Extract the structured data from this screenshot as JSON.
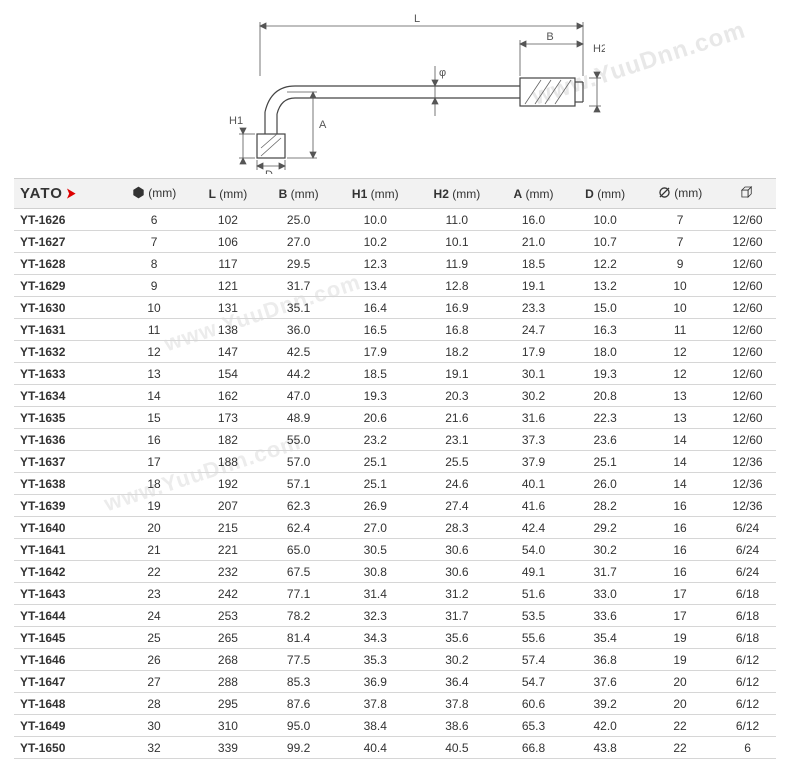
{
  "brand": "YATO",
  "watermark_text": "www.YuuDnn.com",
  "diagram": {
    "labels": {
      "L": "L",
      "B": "B",
      "H2": "H2",
      "H1": "H1",
      "A": "A",
      "D": "D",
      "phi": "φ"
    },
    "stroke": "#444444",
    "dim_stroke": "#555555",
    "background": "#ffffff",
    "hatch": "#666666"
  },
  "colors": {
    "header_bg": "#f2f2f2",
    "border": "#d6d6d6",
    "text": "#333333",
    "brand_arrow": "#d00000"
  },
  "columns": [
    {
      "key": "model",
      "label": "",
      "unit": ""
    },
    {
      "key": "hex",
      "label": "hex",
      "unit": "(mm)"
    },
    {
      "key": "L",
      "label": "L",
      "unit": "(mm)"
    },
    {
      "key": "B",
      "label": "B",
      "unit": "(mm)"
    },
    {
      "key": "H1",
      "label": "H1",
      "unit": "(mm)"
    },
    {
      "key": "H2",
      "label": "H2",
      "unit": "(mm)"
    },
    {
      "key": "A",
      "label": "A",
      "unit": "(mm)"
    },
    {
      "key": "D",
      "label": "D",
      "unit": "(mm)"
    },
    {
      "key": "dia",
      "label": "Ø",
      "unit": "(mm)"
    },
    {
      "key": "pack",
      "label": "pack",
      "unit": ""
    }
  ],
  "rows": [
    {
      "model": "YT-1626",
      "hex": "6",
      "L": "102",
      "B": "25.0",
      "H1": "10.0",
      "H2": "11.0",
      "A": "16.0",
      "D": "10.0",
      "dia": "7",
      "pack": "12/60"
    },
    {
      "model": "YT-1627",
      "hex": "7",
      "L": "106",
      "B": "27.0",
      "H1": "10.2",
      "H2": "10.1",
      "A": "21.0",
      "D": "10.7",
      "dia": "7",
      "pack": "12/60"
    },
    {
      "model": "YT-1628",
      "hex": "8",
      "L": "117",
      "B": "29.5",
      "H1": "12.3",
      "H2": "11.9",
      "A": "18.5",
      "D": "12.2",
      "dia": "9",
      "pack": "12/60"
    },
    {
      "model": "YT-1629",
      "hex": "9",
      "L": "121",
      "B": "31.7",
      "H1": "13.4",
      "H2": "12.8",
      "A": "19.1",
      "D": "13.2",
      "dia": "10",
      "pack": "12/60"
    },
    {
      "model": "YT-1630",
      "hex": "10",
      "L": "131",
      "B": "35.1",
      "H1": "16.4",
      "H2": "16.9",
      "A": "23.3",
      "D": "15.0",
      "dia": "10",
      "pack": "12/60"
    },
    {
      "model": "YT-1631",
      "hex": "11",
      "L": "138",
      "B": "36.0",
      "H1": "16.5",
      "H2": "16.8",
      "A": "24.7",
      "D": "16.3",
      "dia": "11",
      "pack": "12/60"
    },
    {
      "model": "YT-1632",
      "hex": "12",
      "L": "147",
      "B": "42.5",
      "H1": "17.9",
      "H2": "18.2",
      "A": "17.9",
      "D": "18.0",
      "dia": "12",
      "pack": "12/60"
    },
    {
      "model": "YT-1633",
      "hex": "13",
      "L": "154",
      "B": "44.2",
      "H1": "18.5",
      "H2": "19.1",
      "A": "30.1",
      "D": "19.3",
      "dia": "12",
      "pack": "12/60"
    },
    {
      "model": "YT-1634",
      "hex": "14",
      "L": "162",
      "B": "47.0",
      "H1": "19.3",
      "H2": "20.3",
      "A": "30.2",
      "D": "20.8",
      "dia": "13",
      "pack": "12/60"
    },
    {
      "model": "YT-1635",
      "hex": "15",
      "L": "173",
      "B": "48.9",
      "H1": "20.6",
      "H2": "21.6",
      "A": "31.6",
      "D": "22.3",
      "dia": "13",
      "pack": "12/60"
    },
    {
      "model": "YT-1636",
      "hex": "16",
      "L": "182",
      "B": "55.0",
      "H1": "23.2",
      "H2": "23.1",
      "A": "37.3",
      "D": "23.6",
      "dia": "14",
      "pack": "12/60"
    },
    {
      "model": "YT-1637",
      "hex": "17",
      "L": "188",
      "B": "57.0",
      "H1": "25.1",
      "H2": "25.5",
      "A": "37.9",
      "D": "25.1",
      "dia": "14",
      "pack": "12/36"
    },
    {
      "model": "YT-1638",
      "hex": "18",
      "L": "192",
      "B": "57.1",
      "H1": "25.1",
      "H2": "24.6",
      "A": "40.1",
      "D": "26.0",
      "dia": "14",
      "pack": "12/36"
    },
    {
      "model": "YT-1639",
      "hex": "19",
      "L": "207",
      "B": "62.3",
      "H1": "26.9",
      "H2": "27.4",
      "A": "41.6",
      "D": "28.2",
      "dia": "16",
      "pack": "12/36"
    },
    {
      "model": "YT-1640",
      "hex": "20",
      "L": "215",
      "B": "62.4",
      "H1": "27.0",
      "H2": "28.3",
      "A": "42.4",
      "D": "29.2",
      "dia": "16",
      "pack": "6/24"
    },
    {
      "model": "YT-1641",
      "hex": "21",
      "L": "221",
      "B": "65.0",
      "H1": "30.5",
      "H2": "30.6",
      "A": "54.0",
      "D": "30.2",
      "dia": "16",
      "pack": "6/24"
    },
    {
      "model": "YT-1642",
      "hex": "22",
      "L": "232",
      "B": "67.5",
      "H1": "30.8",
      "H2": "30.6",
      "A": "49.1",
      "D": "31.7",
      "dia": "16",
      "pack": "6/24"
    },
    {
      "model": "YT-1643",
      "hex": "23",
      "L": "242",
      "B": "77.1",
      "H1": "31.4",
      "H2": "31.2",
      "A": "51.6",
      "D": "33.0",
      "dia": "17",
      "pack": "6/18"
    },
    {
      "model": "YT-1644",
      "hex": "24",
      "L": "253",
      "B": "78.2",
      "H1": "32.3",
      "H2": "31.7",
      "A": "53.5",
      "D": "33.6",
      "dia": "17",
      "pack": "6/18"
    },
    {
      "model": "YT-1645",
      "hex": "25",
      "L": "265",
      "B": "81.4",
      "H1": "34.3",
      "H2": "35.6",
      "A": "55.6",
      "D": "35.4",
      "dia": "19",
      "pack": "6/18"
    },
    {
      "model": "YT-1646",
      "hex": "26",
      "L": "268",
      "B": "77.5",
      "H1": "35.3",
      "H2": "30.2",
      "A": "57.4",
      "D": "36.8",
      "dia": "19",
      "pack": "6/12"
    },
    {
      "model": "YT-1647",
      "hex": "27",
      "L": "288",
      "B": "85.3",
      "H1": "36.9",
      "H2": "36.4",
      "A": "54.7",
      "D": "37.6",
      "dia": "20",
      "pack": "6/12"
    },
    {
      "model": "YT-1648",
      "hex": "28",
      "L": "295",
      "B": "87.6",
      "H1": "37.8",
      "H2": "37.8",
      "A": "60.6",
      "D": "39.2",
      "dia": "20",
      "pack": "6/12"
    },
    {
      "model": "YT-1649",
      "hex": "30",
      "L": "310",
      "B": "95.0",
      "H1": "38.4",
      "H2": "38.6",
      "A": "65.3",
      "D": "42.0",
      "dia": "22",
      "pack": "6/12"
    },
    {
      "model": "YT-1650",
      "hex": "32",
      "L": "339",
      "B": "99.2",
      "H1": "40.4",
      "H2": "40.5",
      "A": "66.8",
      "D": "43.8",
      "dia": "22",
      "pack": "6"
    }
  ]
}
